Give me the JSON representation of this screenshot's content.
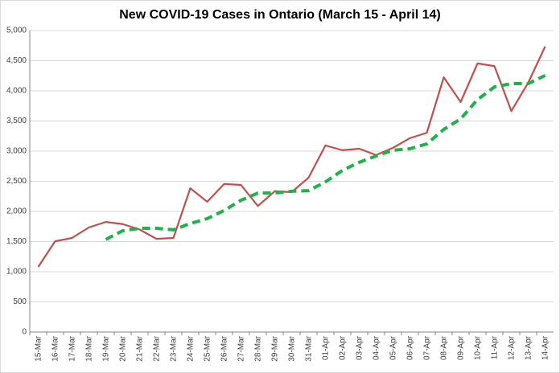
{
  "chart_data": {
    "type": "line",
    "title": "New COVID-19 Cases in Ontario (March 15 - April 14)",
    "categories": [
      "15-Mar",
      "16-Mar",
      "17-Mar",
      "18-Mar",
      "19-Mar",
      "20-Mar",
      "21-Mar",
      "22-Mar",
      "23-Mar",
      "24-Mar",
      "25-Mar",
      "26-Mar",
      "27-Mar",
      "28-Mar",
      "29-Mar",
      "30-Mar",
      "31-Mar",
      "01-Apr",
      "02-Apr",
      "03-Apr",
      "04-Apr",
      "05-Apr",
      "06-Apr",
      "07-Apr",
      "08-Apr",
      "09-Apr",
      "10-Apr",
      "11-Apr",
      "12-Apr",
      "13-Apr",
      "14-Apr"
    ],
    "series": [
      {
        "color": "#c0504d",
        "dashed": false,
        "values": [
          1080,
          1505,
          1560,
          1735,
          1825,
          1790,
          1700,
          1545,
          1560,
          2385,
          2160,
          2455,
          2440,
          2090,
          2335,
          2320,
          2560,
          3095,
          3015,
          3040,
          2935,
          3055,
          3215,
          3305,
          4225,
          3815,
          4455,
          4410,
          3665,
          4135,
          4735
        ]
      },
      {
        "color": "#1fb24a",
        "dashed": true,
        "values": [
          null,
          null,
          null,
          null,
          1535,
          1680,
          1720,
          1720,
          1695,
          1800,
          1880,
          2015,
          2185,
          2305,
          2305,
          2335,
          2345,
          2490,
          2680,
          2815,
          2920,
          3015,
          3040,
          3120,
          3360,
          3535,
          3855,
          4065,
          4120,
          4120,
          4255
        ]
      }
    ],
    "ylim": [
      0,
      5000
    ],
    "yticks": [
      0,
      500,
      {
        "value": 1000,
        "label": "1,000"
      },
      {
        "value": 1500,
        "label": "1,500"
      },
      {
        "value": 2000,
        "label": "2,000"
      },
      {
        "value": 2500,
        "label": "2,500"
      },
      {
        "value": 3000,
        "label": "3,000"
      },
      {
        "value": 3500,
        "label": "3,500"
      },
      {
        "value": 4000,
        "label": "4,000"
      },
      {
        "value": 4500,
        "label": "4,500"
      },
      {
        "value": 5000,
        "label": "5,000"
      }
    ],
    "grid": true
  }
}
